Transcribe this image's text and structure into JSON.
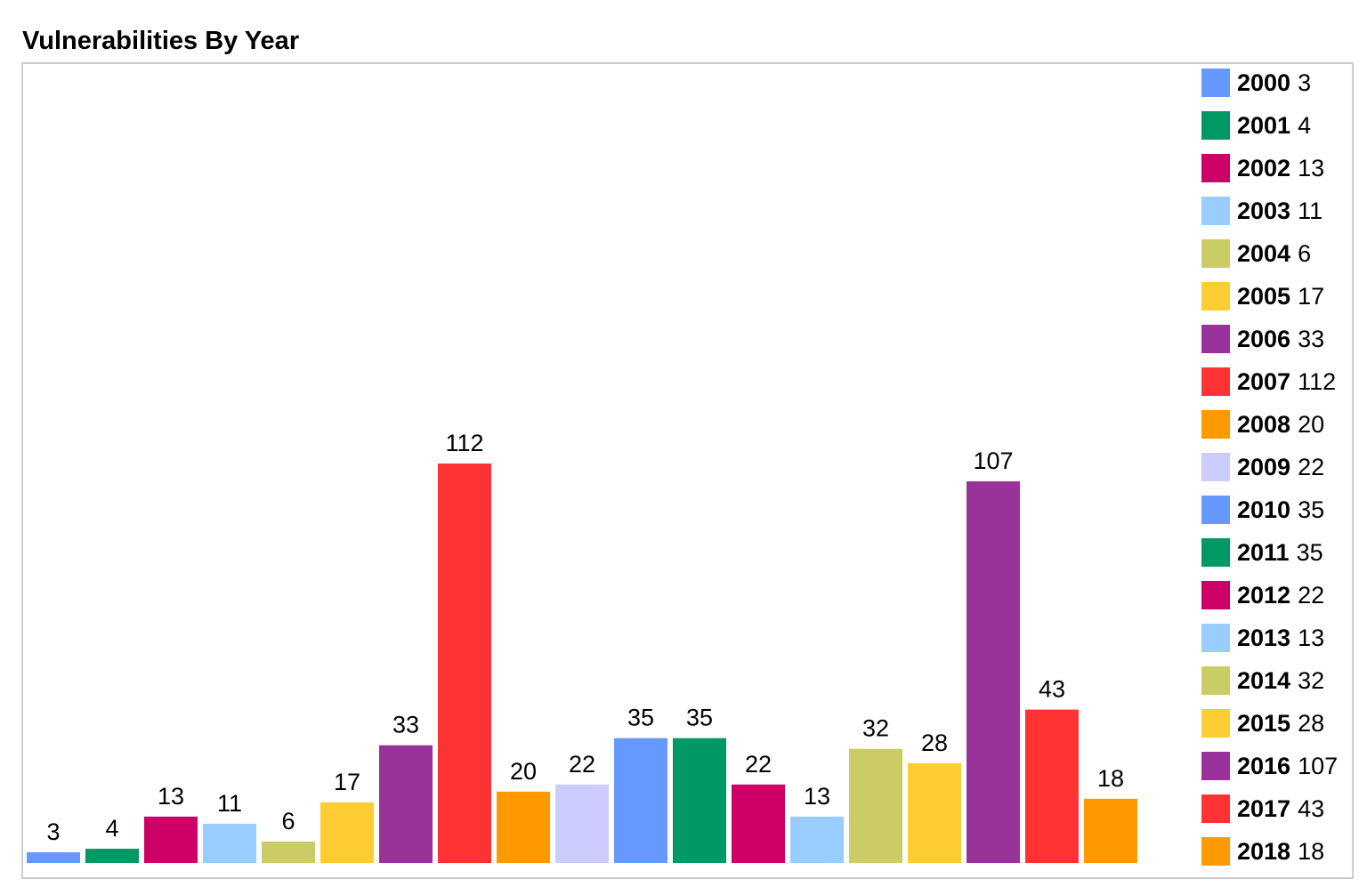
{
  "chart_data": {
    "type": "bar",
    "title": "Vulnerabilities By Year",
    "categories": [
      "2000",
      "2001",
      "2002",
      "2003",
      "2004",
      "2005",
      "2006",
      "2007",
      "2008",
      "2009",
      "2010",
      "2011",
      "2012",
      "2013",
      "2014",
      "2015",
      "2016",
      "2017",
      "2018"
    ],
    "values": [
      3,
      4,
      13,
      11,
      6,
      17,
      33,
      112,
      20,
      22,
      35,
      35,
      22,
      13,
      32,
      28,
      107,
      43,
      18
    ],
    "colors": [
      "#6699ff",
      "#009966",
      "#cc0066",
      "#99ccff",
      "#cccc66",
      "#ffcc33",
      "#993399",
      "#ff3333",
      "#ff9900",
      "#ccccff",
      "#6699ff",
      "#009966",
      "#cc0066",
      "#99ccff",
      "#cccc66",
      "#ffcc33",
      "#993399",
      "#ff3333",
      "#ff9900"
    ],
    "data_labels": true,
    "legend_position": "right",
    "grid": false,
    "ylim": [
      0,
      112
    ]
  }
}
